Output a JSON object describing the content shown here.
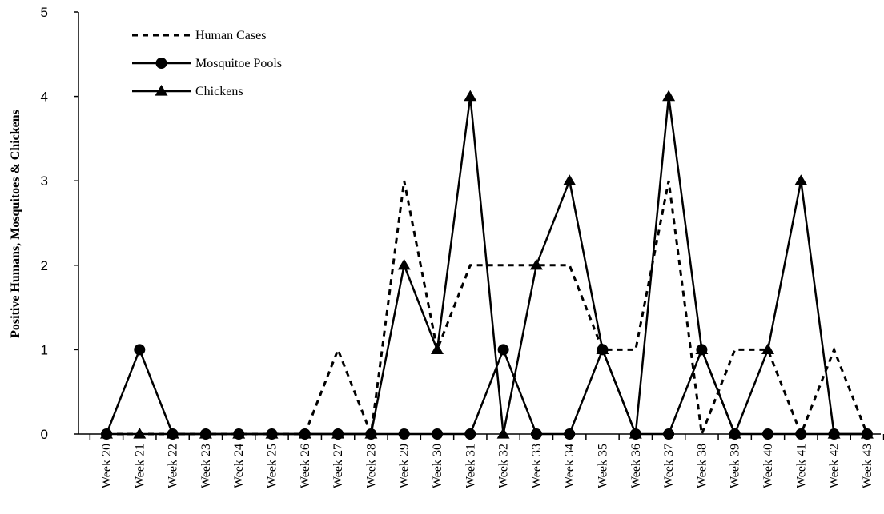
{
  "chart_data": {
    "type": "line",
    "title": "",
    "xlabel": "",
    "ylabel": "Positive Humans, Mosquitoes & Chickens",
    "ylim": [
      0,
      5
    ],
    "yticks": [
      "0",
      "1",
      "2",
      "3",
      "4",
      "5"
    ],
    "grid": false,
    "legend_position": "top-left",
    "categories": [
      "Week 20",
      "Week 21",
      "Week 22",
      "Week 23",
      "Week 24",
      "Week 25",
      "Week 26",
      "Week 27",
      "Week 28",
      "Week 29",
      "Week 30",
      "Week 31",
      "Week 32",
      "Week 33",
      "Week 34",
      "Week 35",
      "Week 36",
      "Week 37",
      "Week 38",
      "Week 39",
      "Week 40",
      "Week 41",
      "Week 42",
      "Week 43"
    ],
    "series": [
      {
        "name": "Human Cases",
        "style": "dashed",
        "marker": "none",
        "values": [
          0,
          0,
          0,
          0,
          0,
          0,
          0,
          1,
          0,
          3,
          1,
          2,
          2,
          2,
          2,
          1,
          1,
          3,
          0,
          1,
          1,
          0,
          1,
          0
        ]
      },
      {
        "name": "Mosquitoe Pools",
        "style": "solid",
        "marker": "circle",
        "values": [
          0,
          1,
          0,
          0,
          0,
          0,
          0,
          0,
          0,
          0,
          0,
          0,
          1,
          0,
          0,
          1,
          0,
          0,
          1,
          0,
          0,
          0,
          0,
          0
        ]
      },
      {
        "name": "Chickens",
        "style": "solid",
        "marker": "triangle",
        "values": [
          0,
          0,
          0,
          0,
          0,
          0,
          0,
          0,
          0,
          2,
          1,
          4,
          0,
          2,
          3,
          1,
          0,
          4,
          1,
          0,
          1,
          3,
          0,
          0
        ]
      }
    ],
    "line_color": "#000000"
  }
}
